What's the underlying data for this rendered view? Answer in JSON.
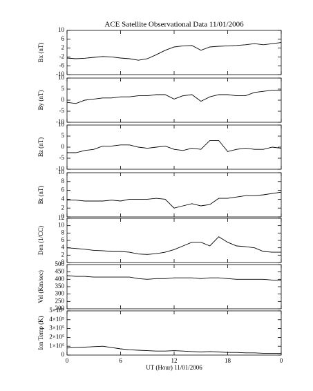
{
  "title": "ACE Satellite Observational Data   11/01/2006",
  "x_axis": {
    "label": "UT (Hour)  11/01/2006",
    "xlim": [
      0,
      24
    ],
    "xticks": [
      0,
      6,
      12,
      18,
      {
        "value": 24,
        "label": "0"
      }
    ]
  },
  "chart_data": [
    {
      "type": "line",
      "ylabel": "Bx (nT)",
      "color": "#000000",
      "ylim": [
        -10,
        10
      ],
      "yticks": [
        -10,
        -6,
        -2,
        2,
        6,
        10
      ],
      "x": [
        0,
        1,
        2,
        3,
        4,
        5,
        6,
        7,
        8,
        9,
        10,
        11,
        12,
        13,
        14,
        15,
        16,
        17,
        18,
        19,
        20,
        21,
        22,
        23,
        24
      ],
      "values": [
        -2.5,
        -2.8,
        -2.6,
        -2.2,
        -1.8,
        -2,
        -2.5,
        -2.8,
        -3.5,
        -2.8,
        -1,
        1,
        2.5,
        3,
        3.2,
        1,
        2.5,
        2.8,
        3,
        3.2,
        3.5,
        4,
        3.5,
        4,
        4.5
      ]
    },
    {
      "type": "line",
      "ylabel": "By (nT)",
      "color": "#000000",
      "ylim": [
        -10,
        10
      ],
      "yticks": [
        -10,
        -5,
        0,
        5,
        10
      ],
      "x": [
        0,
        1,
        2,
        3,
        4,
        5,
        6,
        7,
        8,
        9,
        10,
        11,
        12,
        13,
        14,
        15,
        16,
        17,
        18,
        19,
        20,
        21,
        22,
        23,
        24
      ],
      "values": [
        -1,
        -1.5,
        0,
        0.5,
        1,
        1,
        1.5,
        1.5,
        2,
        2,
        2.5,
        2.5,
        0.5,
        2,
        2.5,
        -0.5,
        1.5,
        2.5,
        2.5,
        2,
        2,
        3.5,
        4,
        4.5,
        4.5
      ]
    },
    {
      "type": "line",
      "ylabel": "Bz (nT)",
      "color": "#000000",
      "ylim": [
        -10,
        10
      ],
      "yticks": [
        -10,
        -5,
        0,
        5,
        10
      ],
      "x": [
        0,
        1,
        2,
        3,
        4,
        5,
        6,
        7,
        8,
        9,
        10,
        11,
        12,
        13,
        14,
        15,
        16,
        17,
        18,
        19,
        20,
        21,
        22,
        23,
        24
      ],
      "values": [
        -2.5,
        -2.5,
        -1.5,
        -1,
        0.5,
        0.5,
        1,
        1,
        0,
        -0.5,
        0,
        0.5,
        -1,
        -1.5,
        -0.5,
        -1,
        3,
        3,
        -2,
        -1,
        -0.5,
        -1,
        -1,
        0,
        -0.5
      ]
    },
    {
      "type": "line",
      "ylabel": "Bt (nT)",
      "color": "#000000",
      "ylim": [
        0,
        10
      ],
      "yticks": [
        0,
        2,
        4,
        6,
        8,
        10
      ],
      "x": [
        0,
        1,
        2,
        3,
        4,
        5,
        6,
        7,
        8,
        9,
        10,
        11,
        12,
        13,
        14,
        15,
        16,
        17,
        18,
        19,
        20,
        21,
        22,
        23,
        24
      ],
      "values": [
        3.8,
        3.8,
        3.6,
        3.6,
        3.6,
        3.8,
        3.6,
        4,
        4,
        4,
        4.2,
        4,
        2,
        2.5,
        3,
        2.5,
        2.8,
        4.2,
        4.2,
        4.5,
        4.8,
        4.8,
        5,
        5.3,
        5.6
      ]
    },
    {
      "type": "line",
      "ylabel": "Den (1/CC)",
      "color": "#000000",
      "ylim": [
        0,
        12
      ],
      "yticks": [
        0,
        2,
        4,
        6,
        8,
        10,
        12
      ],
      "x": [
        0,
        1,
        2,
        3,
        4,
        5,
        6,
        7,
        8,
        9,
        10,
        11,
        12,
        13,
        14,
        15,
        16,
        17,
        18,
        19,
        20,
        21,
        22,
        23,
        24
      ],
      "values": [
        4,
        3.8,
        3.6,
        3.3,
        3.2,
        3,
        3,
        2.8,
        2.3,
        2.2,
        2.4,
        2.8,
        3.5,
        4.5,
        5.5,
        5.5,
        4.5,
        7,
        5.5,
        4.5,
        4.3,
        4,
        3,
        2.8,
        2.8
      ]
    },
    {
      "type": "line",
      "ylabel": "Vel (Km/sec)",
      "color": "#000000",
      "ylim": [
        200,
        500
      ],
      "yticks": [
        200,
        250,
        300,
        350,
        400,
        450,
        500
      ],
      "x": [
        0,
        1,
        2,
        3,
        4,
        5,
        6,
        7,
        8,
        9,
        10,
        11,
        12,
        13,
        14,
        15,
        16,
        17,
        18,
        19,
        20,
        21,
        22,
        23,
        24
      ],
      "values": [
        425,
        420,
        420,
        415,
        415,
        415,
        415,
        415,
        405,
        400,
        405,
        405,
        410,
        410,
        410,
        405,
        410,
        410,
        405,
        400,
        400,
        400,
        400,
        395,
        395
      ]
    },
    {
      "type": "line",
      "ylabel": "Ion Temp (K)",
      "color": "#000000",
      "ylim": [
        0,
        500000
      ],
      "yticks": [
        0,
        {
          "value": 100000,
          "label": "1×10⁵"
        },
        {
          "value": 200000,
          "label": "2×10⁵"
        },
        {
          "value": 300000,
          "label": "3×10⁵"
        },
        {
          "value": 400000,
          "label": "4×10⁵"
        },
        {
          "value": 500000,
          "label": "5×10⁵"
        }
      ],
      "x": [
        0,
        1,
        2,
        3,
        4,
        5,
        6,
        7,
        8,
        9,
        10,
        11,
        12,
        13,
        14,
        15,
        16,
        17,
        18,
        19,
        20,
        21,
        22,
        23,
        24
      ],
      "values": [
        80000,
        85000,
        90000,
        95000,
        100000,
        85000,
        70000,
        60000,
        55000,
        50000,
        45000,
        45000,
        50000,
        45000,
        40000,
        35000,
        40000,
        35000,
        30000,
        30000,
        25000,
        25000,
        20000,
        20000,
        20000
      ]
    }
  ]
}
